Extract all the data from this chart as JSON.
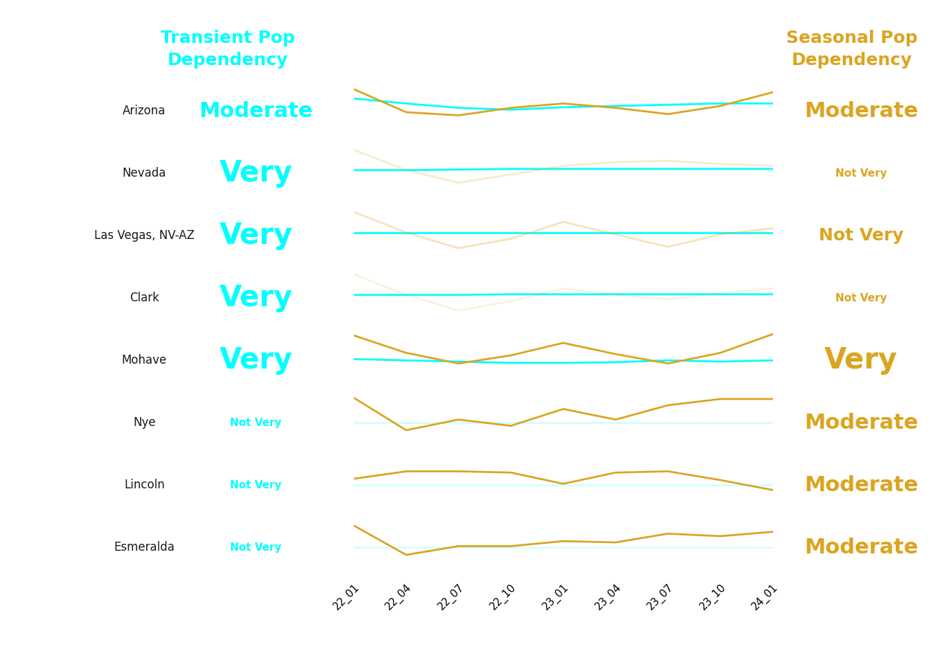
{
  "title_left": "Transient Pop\nDependency",
  "title_right": "Seasonal Pop\nDependency",
  "title_left_color": "#00FFFF",
  "title_right_color": "#DAA520",
  "background_color": "#FFFFFF",
  "x_labels": [
    "22_01",
    "22_04",
    "22_07",
    "22_10",
    "23_01",
    "23_04",
    "23_07",
    "23_10",
    "24_01"
  ],
  "counties": [
    {
      "name": "Arizona",
      "transient_label": "Moderate",
      "transient_size": 22,
      "seasonal_label": "Moderate",
      "seasonal_size": 22,
      "cyan_line": [
        0.7,
        0.62,
        0.55,
        0.52,
        0.56,
        0.58,
        0.6,
        0.62,
        0.62
      ],
      "gold_line": [
        0.85,
        0.48,
        0.43,
        0.55,
        0.62,
        0.55,
        0.45,
        0.58,
        0.8
      ],
      "cyan_alpha": 1.0,
      "gold_alpha": 1.0
    },
    {
      "name": "Nevada",
      "transient_label": "Very",
      "transient_size": 30,
      "seasonal_label": "Not Very",
      "seasonal_size": 11,
      "cyan_line": [
        0.55,
        0.55,
        0.56,
        0.57,
        0.57,
        0.57,
        0.57,
        0.57,
        0.57
      ],
      "gold_line": [
        0.88,
        0.55,
        0.35,
        0.48,
        0.62,
        0.68,
        0.7,
        0.65,
        0.62
      ],
      "cyan_alpha": 1.0,
      "gold_alpha": 0.22
    },
    {
      "name": "Las Vegas, NV-AZ",
      "transient_label": "Very",
      "transient_size": 30,
      "seasonal_label": "Not Very",
      "seasonal_size": 18,
      "cyan_line": [
        0.55,
        0.55,
        0.55,
        0.55,
        0.55,
        0.55,
        0.55,
        0.55,
        0.55
      ],
      "gold_line": [
        0.88,
        0.55,
        0.3,
        0.45,
        0.72,
        0.52,
        0.32,
        0.52,
        0.62
      ],
      "cyan_alpha": 1.0,
      "gold_alpha": 0.3
    },
    {
      "name": "Clark",
      "transient_label": "Very",
      "transient_size": 30,
      "seasonal_label": "Not Very",
      "seasonal_size": 11,
      "cyan_line": [
        0.55,
        0.55,
        0.55,
        0.56,
        0.56,
        0.56,
        0.56,
        0.56,
        0.56
      ],
      "gold_line": [
        0.88,
        0.55,
        0.3,
        0.45,
        0.65,
        0.55,
        0.48,
        0.58,
        0.65
      ],
      "cyan_alpha": 1.0,
      "gold_alpha": 0.15
    },
    {
      "name": "Mohave",
      "transient_label": "Very",
      "transient_size": 30,
      "seasonal_label": "Very",
      "seasonal_size": 30,
      "cyan_line": [
        0.52,
        0.5,
        0.48,
        0.46,
        0.46,
        0.47,
        0.5,
        0.48,
        0.5
      ],
      "gold_line": [
        0.9,
        0.62,
        0.45,
        0.58,
        0.78,
        0.6,
        0.45,
        0.62,
        0.92
      ],
      "cyan_alpha": 1.0,
      "gold_alpha": 1.0
    },
    {
      "name": "Nye",
      "transient_label": "Not Very",
      "transient_size": 11,
      "seasonal_label": "Moderate",
      "seasonal_size": 22,
      "cyan_line": [
        0.5,
        0.5,
        0.5,
        0.5,
        0.5,
        0.5,
        0.5,
        0.5,
        0.5
      ],
      "gold_line": [
        0.9,
        0.38,
        0.55,
        0.45,
        0.72,
        0.55,
        0.78,
        0.88,
        0.88
      ],
      "cyan_alpha": 0.18,
      "gold_alpha": 1.0
    },
    {
      "name": "Lincoln",
      "transient_label": "Not Very",
      "transient_size": 11,
      "seasonal_label": "Moderate",
      "seasonal_size": 22,
      "cyan_line": [
        0.5,
        0.5,
        0.5,
        0.5,
        0.5,
        0.5,
        0.5,
        0.5,
        0.5
      ],
      "gold_line": [
        0.6,
        0.72,
        0.72,
        0.7,
        0.52,
        0.7,
        0.72,
        0.58,
        0.42
      ],
      "cyan_alpha": 0.18,
      "gold_alpha": 1.0
    },
    {
      "name": "Esmeralda",
      "transient_label": "Not Very",
      "transient_size": 11,
      "seasonal_label": "Moderate",
      "seasonal_size": 22,
      "cyan_line": [
        0.5,
        0.5,
        0.5,
        0.5,
        0.5,
        0.5,
        0.5,
        0.5,
        0.5
      ],
      "gold_line": [
        0.85,
        0.38,
        0.52,
        0.52,
        0.6,
        0.58,
        0.72,
        0.68,
        0.75
      ],
      "cyan_alpha": 0.18,
      "gold_alpha": 1.0
    }
  ],
  "cyan_color": "#00FFFF",
  "gold_color": "#DAA520",
  "county_name_fontsize": 12,
  "county_name_color": "#1a1a1a",
  "transient_cyan_color": "#00FFFF",
  "seasonal_gold_color": "#DAA520"
}
